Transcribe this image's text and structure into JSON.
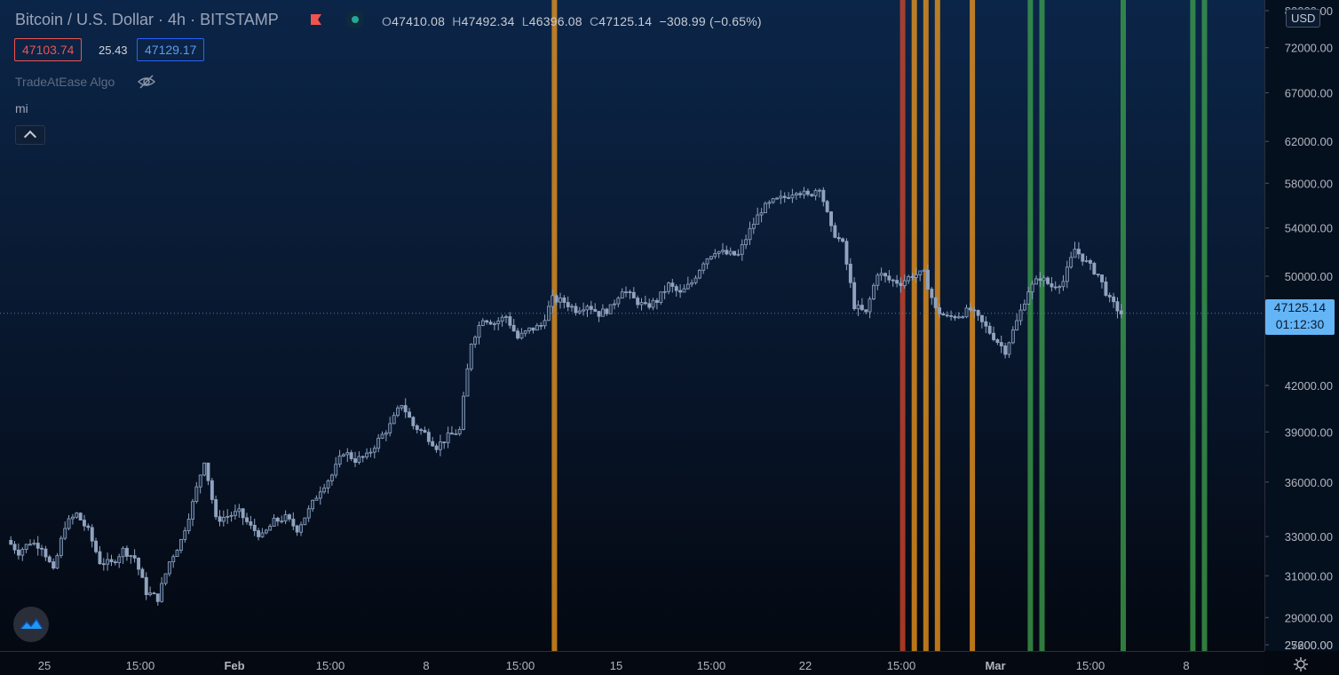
{
  "header": {
    "symbol_title": "Bitcoin / U.S. Dollar · 4h · BITSTAMP",
    "ohlc": {
      "o_label": "O",
      "o": "47410.08",
      "h_label": "H",
      "h": "47492.34",
      "l_label": "L",
      "l": "46396.08",
      "c_label": "C",
      "c": "47125.14",
      "change": "−308.99 (−0.65%)"
    },
    "bid": "47103.74",
    "spread": "25.43",
    "ask": "47129.17",
    "indicator_name": "TradeAtEase Algo",
    "indicator2_name": "mi"
  },
  "price_axis": {
    "currency": "USD",
    "current_price": "47125.14",
    "countdown": "01:12:30",
    "ticks": [
      "80000.00",
      "72000.00",
      "67000.00",
      "62000.00",
      "58000.00",
      "54000.00",
      "50000.00",
      "42000.00",
      "39000.00",
      "36000.00",
      "33000.00",
      "31000.00",
      "29000.00",
      "27200.00",
      "25600.00"
    ],
    "tick_values": [
      80000,
      72000,
      67000,
      62000,
      58000,
      54000,
      50000,
      42000,
      39000,
      36000,
      33000,
      31000,
      29000,
      27200,
      25600
    ]
  },
  "time_axis": {
    "labels": [
      "25",
      "15:00",
      "Feb",
      "15:00",
      "8",
      "15:00",
      "15",
      "15:00",
      "22",
      "15:00",
      "Mar",
      "15:00",
      "8"
    ]
  },
  "colors": {
    "up_candle": "#8fa3c0",
    "down_candle": "#8fa3c0",
    "orange_signal": "#f59b1c",
    "green_signal": "#3fa34d",
    "red_signal": "#d9482b",
    "last_price": "#64b5f6",
    "bid": "#ef5350",
    "ask": "#2962ff"
  },
  "chart_data": {
    "type": "candlestick",
    "title": "Bitcoin / U.S. Dollar · 4h · BITSTAMP",
    "y_scale": "log",
    "ylim": [
      25600,
      80000
    ],
    "last_price": 47125.14,
    "x_labels": [
      "25",
      "15:00",
      "Feb",
      "15:00",
      "8",
      "15:00",
      "15",
      "15:00",
      "22",
      "15:00",
      "Mar",
      "15:00",
      "8"
    ],
    "close_path": [
      32800,
      32200,
      32700,
      32500,
      31200,
      33600,
      34200,
      33300,
      31700,
      31600,
      32300,
      31900,
      30200,
      29900,
      31700,
      32800,
      34800,
      37300,
      33900,
      34100,
      34300,
      33500,
      33000,
      33800,
      34000,
      33400,
      34400,
      35600,
      36400,
      37800,
      37300,
      37500,
      38500,
      39400,
      40800,
      39400,
      38900,
      38100,
      38700,
      39100,
      45000,
      46800,
      46400,
      46900,
      45300,
      45900,
      46200,
      48200,
      48000,
      47400,
      47800,
      47100,
      47500,
      49000,
      48200,
      47600,
      48100,
      49300,
      48600,
      49500,
      51200,
      52100,
      51800,
      51700,
      53800,
      55600,
      56300,
      56700,
      57400,
      56800,
      57700,
      53900,
      52600,
      47700,
      47100,
      50300,
      49700,
      49500,
      50100,
      50200,
      47400,
      46800,
      47000,
      47400,
      46400,
      45400,
      44400,
      46500,
      48900,
      49900,
      49200,
      49600,
      52200,
      51100,
      50100,
      48100,
      47125
    ],
    "signals": [
      {
        "type": "orange",
        "index": 47
      },
      {
        "type": "red",
        "index": 77
      },
      {
        "type": "orange",
        "index": 78
      },
      {
        "type": "orange",
        "index": 79
      },
      {
        "type": "orange",
        "index": 80
      },
      {
        "type": "orange",
        "index": 83
      },
      {
        "type": "green",
        "index": 88
      },
      {
        "type": "green",
        "index": 89
      },
      {
        "type": "green",
        "index": 96
      },
      {
        "type": "green",
        "index": 102
      },
      {
        "type": "green",
        "index": 103
      }
    ]
  }
}
